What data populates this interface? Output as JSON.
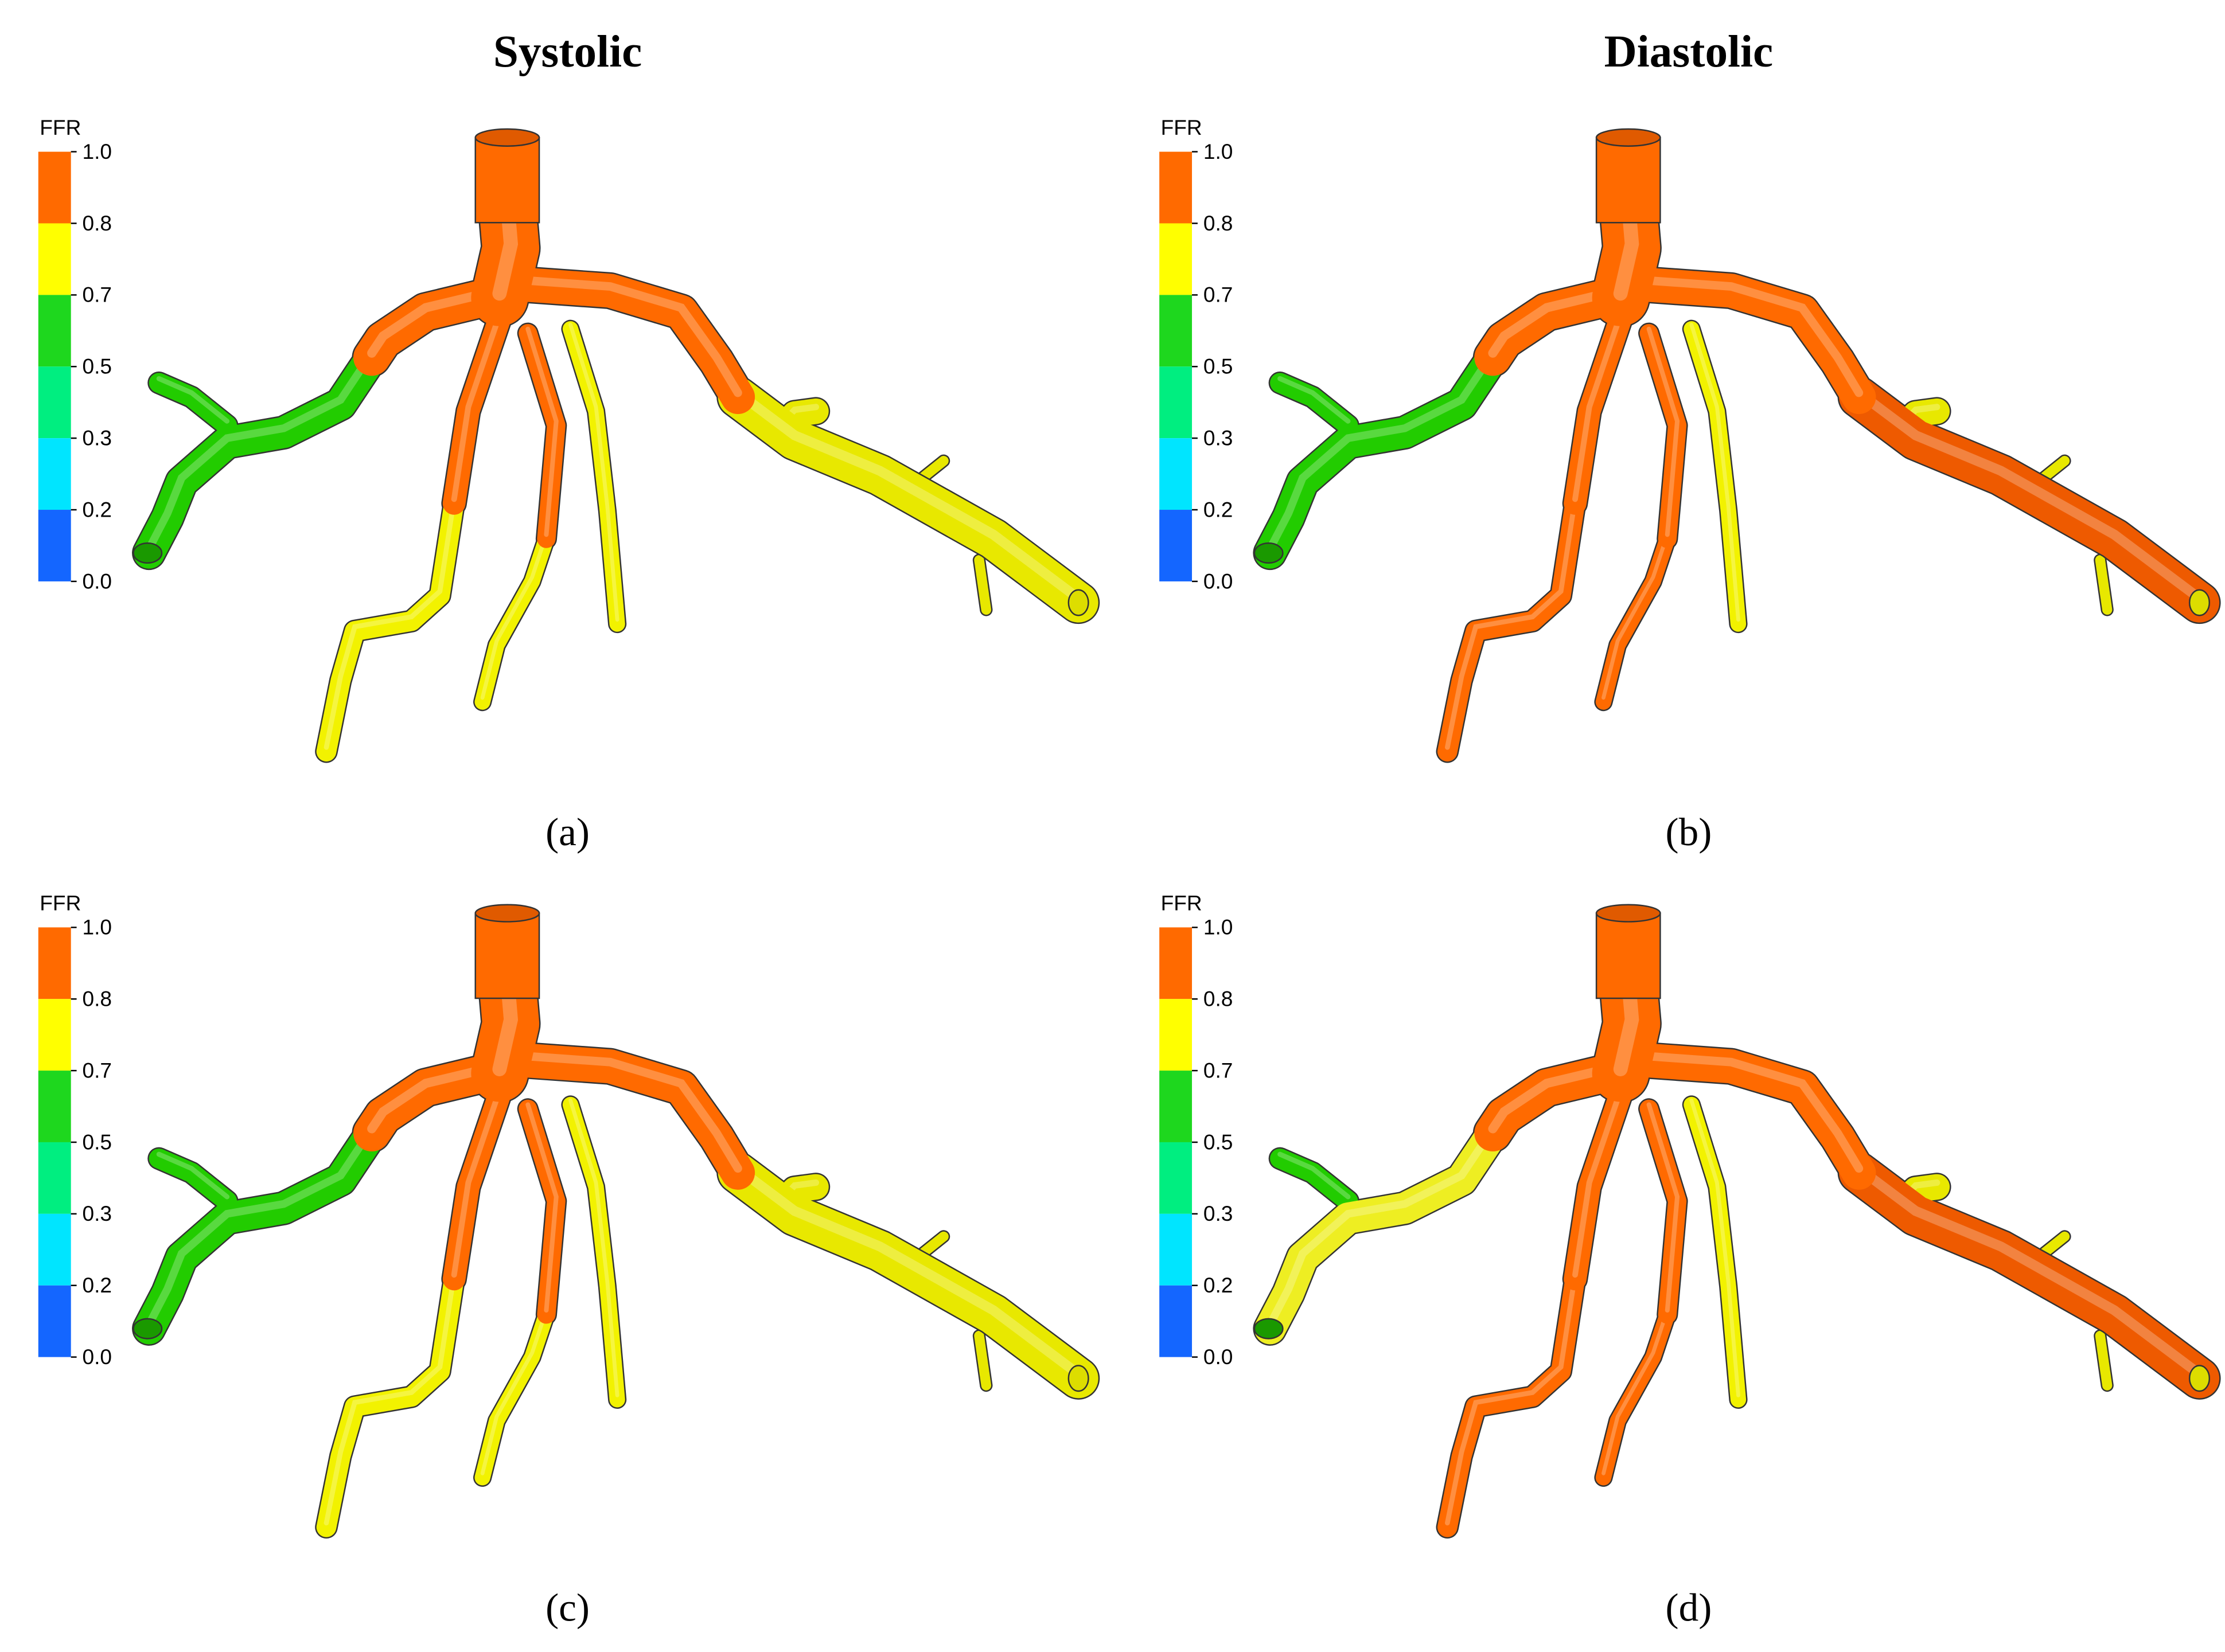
{
  "columns": [
    "Systolic",
    "Diastolic"
  ],
  "panels": [
    {
      "label": "(a)",
      "legend": {
        "title": "FFR",
        "ticks": [
          "1.0",
          "0.8",
          "0.7",
          "0.5",
          "0.3",
          "0.2",
          "0.0"
        ],
        "colors": [
          "#ff6a00",
          "#ffff00",
          "#1ed71e",
          "#00ee80",
          "#00e5ff",
          "#1466ff"
        ]
      },
      "vessel_colors": {
        "aorta": "#ff6a00",
        "trunk": "#ff6a00",
        "leftProx": "#ff6a00",
        "leftDist": "#22cc00",
        "leftSide": "#22cc00",
        "rightProx": "#ff6a00",
        "rightDist": "#e8e800",
        "rightSide": "#e8e800",
        "mid1Prox": "#ff6a00",
        "mid1Dist": "#f2f200",
        "mid2Prox": "#ff6a00",
        "mid2Dist": "#f2f200",
        "mid3": "#f2f200"
      }
    },
    {
      "label": "(b)",
      "legend": {
        "title": "FFR",
        "ticks": [
          "1.0",
          "0.8",
          "0.7",
          "0.5",
          "0.3",
          "0.2",
          "0.0"
        ],
        "colors": [
          "#ff6a00",
          "#ffff00",
          "#1ed71e",
          "#00ee80",
          "#00e5ff",
          "#1466ff"
        ]
      },
      "vessel_colors": {
        "aorta": "#ff6a00",
        "trunk": "#ff6a00",
        "leftProx": "#ff6a00",
        "leftDist": "#22cc00",
        "leftSide": "#22cc00",
        "rightProx": "#ff6a00",
        "rightDist": "#ee5a00",
        "rightSide": "#e8e800",
        "mid1Prox": "#ff6a00",
        "mid1Dist": "#ff6a00",
        "mid2Prox": "#ff6a00",
        "mid2Dist": "#ff6a00",
        "mid3": "#f2f200"
      }
    },
    {
      "label": "(c)",
      "legend": {
        "title": "FFR",
        "ticks": [
          "1.0",
          "0.8",
          "0.7",
          "0.5",
          "0.3",
          "0.2",
          "0.0"
        ],
        "colors": [
          "#ff6a00",
          "#ffff00",
          "#1ed71e",
          "#00ee80",
          "#00e5ff",
          "#1466ff"
        ]
      },
      "vessel_colors": {
        "aorta": "#ff6a00",
        "trunk": "#ff6a00",
        "leftProx": "#ff6a00",
        "leftDist": "#22cc00",
        "leftSide": "#22cc00",
        "rightProx": "#ff6a00",
        "rightDist": "#e8e800",
        "rightSide": "#e8e800",
        "mid1Prox": "#ff6a00",
        "mid1Dist": "#f2f200",
        "mid2Prox": "#ff6a00",
        "mid2Dist": "#f2f200",
        "mid3": "#f2f200"
      }
    },
    {
      "label": "(d)",
      "legend": {
        "title": "FFR",
        "ticks": [
          "1.0",
          "0.8",
          "0.7",
          "0.5",
          "0.3",
          "0.2",
          "0.0"
        ],
        "colors": [
          "#ff6a00",
          "#ffff00",
          "#1ed71e",
          "#00ee80",
          "#00e5ff",
          "#1466ff"
        ]
      },
      "vessel_colors": {
        "aorta": "#ff6a00",
        "trunk": "#ff6a00",
        "leftProx": "#ff6a00",
        "leftDist": "#eeee22",
        "leftSide": "#22cc00",
        "rightProx": "#ff6a00",
        "rightDist": "#ee5a00",
        "rightSide": "#e8e800",
        "mid1Prox": "#ff6a00",
        "mid1Dist": "#ff6a00",
        "mid2Prox": "#ff6a00",
        "mid2Dist": "#ff6a00",
        "mid3": "#f2f200"
      }
    }
  ]
}
